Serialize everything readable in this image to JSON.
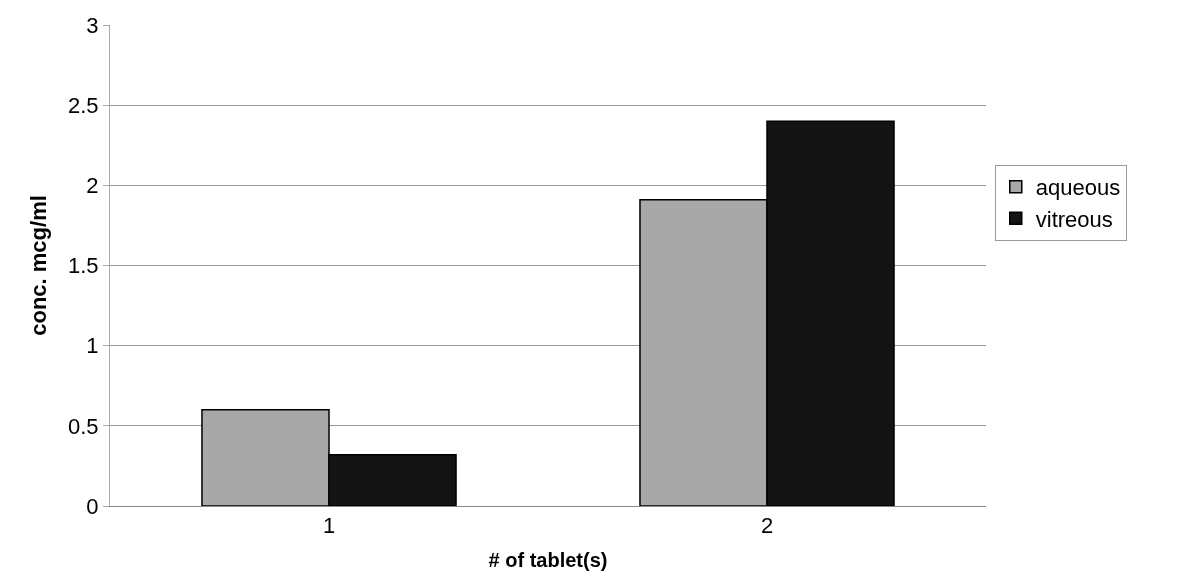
{
  "chart_data": {
    "type": "bar",
    "xlabel": "# of tablet(s)",
    "ylabel": "conc. mcg/ml",
    "categories": [
      "1",
      "2"
    ],
    "series": [
      {
        "name": "aqueous",
        "color": "#a8a8a8",
        "values": [
          0.6,
          1.91
        ]
      },
      {
        "name": "vitreous",
        "color": "#141414",
        "values": [
          0.32,
          2.4
        ]
      }
    ],
    "ylim": [
      0,
      3
    ],
    "yticks": [
      0,
      0.5,
      1,
      1.5,
      2,
      2.5,
      3
    ],
    "grid": "y",
    "legend": "right"
  }
}
